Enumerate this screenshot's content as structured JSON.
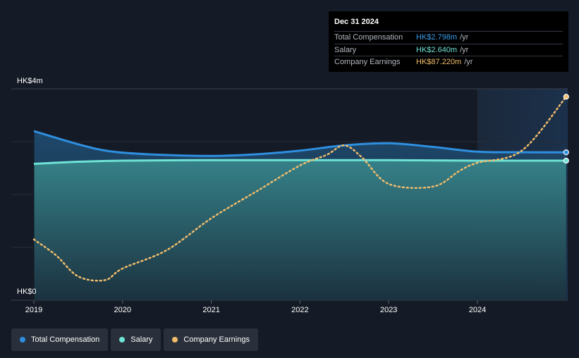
{
  "tooltip": {
    "date": "Dec 31 2024",
    "rows": [
      {
        "label": "Total Compensation",
        "value": "HK$2.798m",
        "unit": "/yr",
        "color": "#3b9be8"
      },
      {
        "label": "Salary",
        "value": "HK$2.640m",
        "unit": "/yr",
        "color": "#6fe3d5"
      },
      {
        "label": "Company Earnings",
        "value": "HK$87.220m",
        "unit": "/yr",
        "color": "#f2bd6b"
      }
    ]
  },
  "legend": [
    {
      "label": "Total Compensation",
      "color": "#2e8fe0"
    },
    {
      "label": "Salary",
      "color": "#6fe3d5"
    },
    {
      "label": "Company Earnings",
      "color": "#f2bd6b"
    }
  ],
  "chart_data": {
    "type": "line",
    "y_axis_labels": [
      "HK$4m",
      "HK$0"
    ],
    "ylim": [
      0,
      4
    ],
    "xlim": [
      2019.0,
      2025.0
    ],
    "x_ticks": [
      "2019",
      "2020",
      "2021",
      "2022",
      "2023",
      "2024"
    ],
    "forecast_region_start": 2024.0,
    "grid": true,
    "legend_position": "bottom-left",
    "series": [
      {
        "name": "Total Compensation",
        "color": "#2e8fe0",
        "x": [
          2019.0,
          2019.5,
          2019.85,
          2020.3,
          2021.0,
          2021.5,
          2022.0,
          2022.5,
          2023.0,
          2023.5,
          2024.0,
          2024.5,
          2025.0
        ],
        "y": [
          3.2,
          2.95,
          2.82,
          2.76,
          2.73,
          2.76,
          2.83,
          2.93,
          2.97,
          2.9,
          2.81,
          2.8,
          2.798
        ]
      },
      {
        "name": "Salary",
        "color": "#6fe3d5",
        "x": [
          2019.0,
          2019.5,
          2020.0,
          2021.0,
          2022.0,
          2023.0,
          2024.0,
          2025.0
        ],
        "y": [
          2.58,
          2.62,
          2.64,
          2.65,
          2.65,
          2.65,
          2.64,
          2.64
        ],
        "unit": "HK$m"
      },
      {
        "name": "Company Earnings",
        "color": "#f2bd6b",
        "dashed": true,
        "x": [
          2019.0,
          2019.25,
          2019.5,
          2019.8,
          2020.0,
          2020.5,
          2021.0,
          2021.5,
          2022.0,
          2022.3,
          2022.5,
          2022.7,
          2023.0,
          2023.5,
          2023.8,
          2024.0,
          2024.5,
          2025.0
        ],
        "y": [
          1.15,
          0.85,
          0.45,
          0.38,
          0.6,
          0.95,
          1.55,
          2.05,
          2.55,
          2.75,
          2.93,
          2.7,
          2.2,
          2.15,
          2.45,
          2.6,
          2.83,
          3.85
        ]
      }
    ]
  }
}
